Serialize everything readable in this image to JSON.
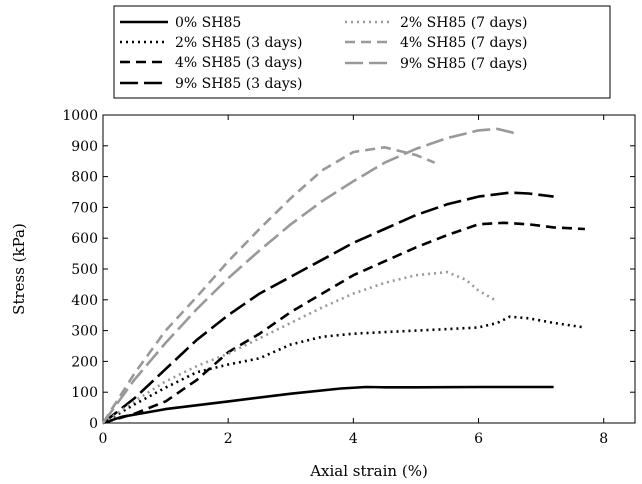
{
  "chart_data": {
    "type": "line",
    "title": "",
    "xlabel": "Axial strain (%)",
    "ylabel": "Stress (kPa)",
    "xlim": [
      0,
      8.5
    ],
    "ylim": [
      0,
      1000
    ],
    "xticks": [
      0,
      2,
      4,
      6,
      8
    ],
    "yticks": [
      0,
      100,
      200,
      300,
      400,
      500,
      600,
      700,
      800,
      900,
      1000
    ],
    "grid": false,
    "legend_position": "top, above plot",
    "series": [
      {
        "name": "0% SH85",
        "color": "#000000",
        "dash": "solid",
        "x": [
          0,
          0.3,
          1,
          2,
          3,
          3.8,
          4.2,
          4.5,
          5,
          6,
          7,
          7.2
        ],
        "y": [
          0,
          20,
          45,
          70,
          95,
          112,
          117,
          116,
          116,
          117,
          117,
          117
        ]
      },
      {
        "name": "2% SH85 (3 days)",
        "color": "#000000",
        "dash": "dot",
        "x": [
          0,
          0.5,
          1,
          1.5,
          2,
          2.5,
          3,
          3.5,
          4,
          4.5,
          5,
          5.5,
          6,
          6.3,
          6.5,
          6.8,
          7.2,
          7.7
        ],
        "y": [
          0,
          60,
          115,
          165,
          190,
          210,
          255,
          280,
          290,
          295,
          300,
          305,
          310,
          325,
          345,
          340,
          325,
          310
        ]
      },
      {
        "name": "4% SH85 (3 days)",
        "color": "#000000",
        "dash": "dash",
        "x": [
          0,
          0.5,
          1,
          1.5,
          2,
          2.5,
          3,
          3.5,
          4,
          4.5,
          5,
          5.5,
          6,
          6.4,
          6.8,
          7.2,
          7.7
        ],
        "y": [
          0,
          30,
          70,
          140,
          230,
          290,
          360,
          420,
          480,
          525,
          570,
          610,
          645,
          650,
          645,
          635,
          630
        ]
      },
      {
        "name": "9% SH85 (3 days)",
        "color": "#000000",
        "dash": "longdash",
        "x": [
          0,
          0.5,
          1,
          1.5,
          2,
          2.5,
          3,
          3.5,
          4,
          4.5,
          5,
          5.5,
          6,
          6.5,
          6.8,
          7.2
        ],
        "y": [
          0,
          80,
          175,
          270,
          350,
          420,
          475,
          530,
          585,
          630,
          675,
          710,
          735,
          748,
          745,
          735
        ]
      },
      {
        "name": "2% SH85 (7 days)",
        "color": "#999999",
        "dash": "dot",
        "x": [
          0,
          0.5,
          1,
          1.5,
          2,
          2.5,
          3,
          3.5,
          4,
          4.5,
          5,
          5.5,
          5.8,
          6,
          6.3
        ],
        "y": [
          0,
          70,
          135,
          185,
          225,
          275,
          325,
          375,
          420,
          455,
          480,
          490,
          465,
          430,
          395
        ]
      },
      {
        "name": "4% SH85 (7 days)",
        "color": "#999999",
        "dash": "dash",
        "x": [
          0,
          0.5,
          1,
          1.5,
          2,
          2.5,
          3,
          3.5,
          4,
          4.5,
          5,
          5.3
        ],
        "y": [
          0,
          160,
          300,
          410,
          525,
          630,
          730,
          820,
          880,
          895,
          870,
          845
        ]
      },
      {
        "name": "9% SH85 (7 days)",
        "color": "#999999",
        "dash": "longdash",
        "x": [
          0,
          0.5,
          1,
          1.5,
          2,
          2.5,
          3,
          3.5,
          4,
          4.5,
          5,
          5.5,
          6,
          6.3,
          6.6
        ],
        "y": [
          0,
          140,
          260,
          370,
          470,
          560,
          645,
          720,
          785,
          845,
          890,
          925,
          950,
          955,
          940
        ]
      }
    ]
  }
}
